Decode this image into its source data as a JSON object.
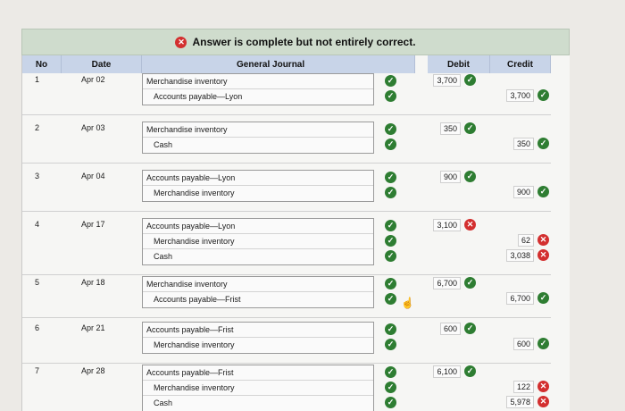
{
  "banner": {
    "message": "Answer is complete but not entirely correct.",
    "icon": "x-circle-icon"
  },
  "headers": {
    "no": "No",
    "date": "Date",
    "general_journal": "General Journal",
    "debit": "Debit",
    "credit": "Credit"
  },
  "colors": {
    "correct": "#2e7d32",
    "incorrect": "#d32f2f",
    "header_bg": "#c8d4e8",
    "banner_bg": "#cfdccd"
  },
  "entries": [
    {
      "no": "1",
      "date": "Apr 02",
      "lines": [
        {
          "account": "Merchandise inventory",
          "indent": false,
          "debit": "3,700",
          "debit_status": "correct",
          "credit": "",
          "credit_status": ""
        },
        {
          "account": "Accounts payable—Lyon",
          "indent": true,
          "debit": "",
          "debit_status": "",
          "credit": "3,700",
          "credit_status": "correct"
        }
      ]
    },
    {
      "no": "2",
      "date": "Apr 03",
      "lines": [
        {
          "account": "Merchandise inventory",
          "indent": false,
          "debit": "350",
          "debit_status": "correct",
          "credit": "",
          "credit_status": ""
        },
        {
          "account": "Cash",
          "indent": true,
          "debit": "",
          "debit_status": "",
          "credit": "350",
          "credit_status": "correct"
        }
      ]
    },
    {
      "no": "3",
      "date": "Apr 04",
      "lines": [
        {
          "account": "Accounts payable—Lyon",
          "indent": false,
          "debit": "900",
          "debit_status": "correct",
          "credit": "",
          "credit_status": ""
        },
        {
          "account": "Merchandise inventory",
          "indent": true,
          "debit": "",
          "debit_status": "",
          "credit": "900",
          "credit_status": "correct"
        }
      ]
    },
    {
      "no": "4",
      "date": "Apr 17",
      "lines": [
        {
          "account": "Accounts payable—Lyon",
          "indent": false,
          "debit": "3,100",
          "debit_status": "incorrect",
          "credit": "",
          "credit_status": ""
        },
        {
          "account": "Merchandise inventory",
          "indent": true,
          "debit": "",
          "debit_status": "",
          "credit": "62",
          "credit_status": "incorrect"
        },
        {
          "account": "Cash",
          "indent": true,
          "debit": "",
          "debit_status": "",
          "credit": "3,038",
          "credit_status": "incorrect"
        }
      ]
    },
    {
      "no": "5",
      "date": "Apr 18",
      "lines": [
        {
          "account": "Merchandise inventory",
          "indent": false,
          "debit": "6,700",
          "debit_status": "correct",
          "credit": "",
          "credit_status": ""
        },
        {
          "account": "Accounts payable—Frist",
          "indent": true,
          "debit": "",
          "debit_status": "",
          "credit": "6,700",
          "credit_status": "correct"
        }
      ]
    },
    {
      "no": "6",
      "date": "Apr 21",
      "lines": [
        {
          "account": "Accounts payable—Frist",
          "indent": false,
          "debit": "600",
          "debit_status": "correct",
          "credit": "",
          "credit_status": ""
        },
        {
          "account": "Merchandise inventory",
          "indent": true,
          "debit": "",
          "debit_status": "",
          "credit": "600",
          "credit_status": "correct"
        }
      ]
    },
    {
      "no": "7",
      "date": "Apr 28",
      "lines": [
        {
          "account": "Accounts payable—Frist",
          "indent": false,
          "debit": "6,100",
          "debit_status": "correct",
          "credit": "",
          "credit_status": ""
        },
        {
          "account": "Merchandise inventory",
          "indent": true,
          "debit": "",
          "debit_status": "",
          "credit": "122",
          "credit_status": "incorrect"
        },
        {
          "account": "Cash",
          "indent": true,
          "debit": "",
          "debit_status": "",
          "credit": "5,978",
          "credit_status": "incorrect"
        }
      ]
    }
  ]
}
